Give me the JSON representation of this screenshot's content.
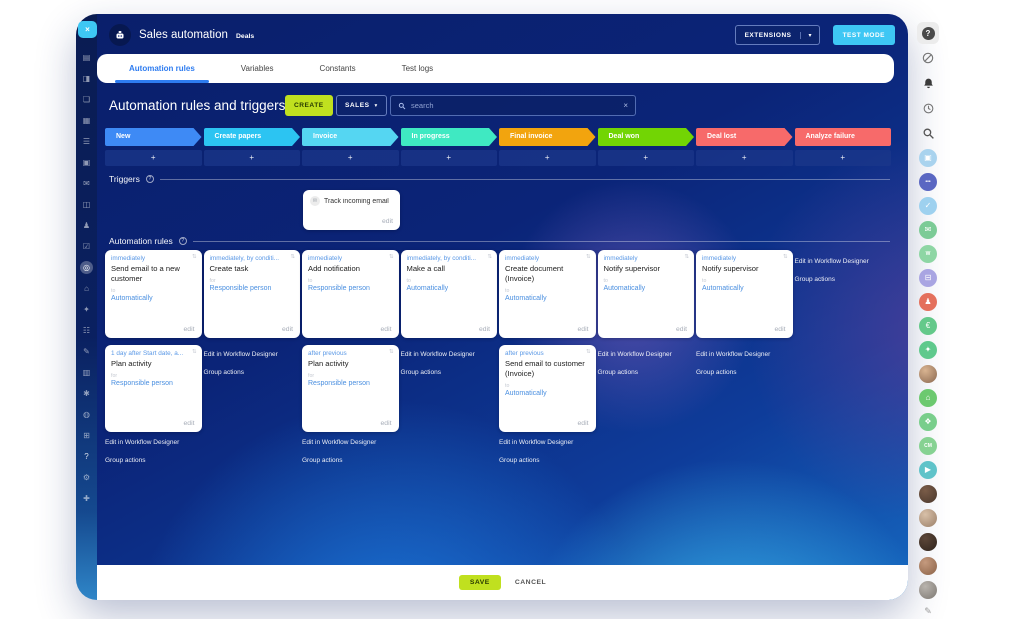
{
  "colors": {
    "accent_lime": "#c0e01f",
    "accent_cyan": "#3ec7f4"
  },
  "chrome": {
    "app_title": "Sales automation",
    "app_subtitle": "Deals",
    "extensions_label": "EXTENSIONS",
    "extensions_caret": "▾",
    "test_mode_label": "TEST MODE",
    "close_label": "×"
  },
  "tabs": [
    {
      "label": "Automation rules",
      "active": true
    },
    {
      "label": "Variables",
      "active": false
    },
    {
      "label": "Constants",
      "active": false
    },
    {
      "label": "Test logs",
      "active": false
    }
  ],
  "toolbar": {
    "heading": "Automation rules and triggers",
    "create_label": "CREATE",
    "pipeline_selector": "SALES",
    "pipeline_caret": "▾",
    "search_placeholder": "search",
    "search_clear": "×"
  },
  "pipeline": {
    "stages": [
      {
        "label": "New",
        "color": "#3e8af5"
      },
      {
        "label": "Create papers",
        "color": "#2cc4f2"
      },
      {
        "label": "Invoice",
        "color": "#55d6f2"
      },
      {
        "label": "In progress",
        "color": "#3fe9c2"
      },
      {
        "label": "Final invoice",
        "color": "#f2a40e"
      },
      {
        "label": "Deal won",
        "color": "#72d504"
      },
      {
        "label": "Deal lost",
        "color": "#f76a6a"
      },
      {
        "label": "Analyze failure",
        "color": "#f76a6a"
      }
    ],
    "add_stage_label": "+"
  },
  "sections": {
    "triggers": "Triggers",
    "rules": "Automation rules"
  },
  "trigger_card": {
    "title": "Track incoming email"
  },
  "labels": {
    "edit": "edit",
    "edit_workflow": "Edit in Workflow Designer",
    "group_actions": "Group actions"
  },
  "rules": {
    "row1": [
      {
        "when": "immediately",
        "title": "Send email to a new customer",
        "target_label": "to",
        "target": "Automatically"
      },
      {
        "when": "immediately, by conditi...",
        "title": "Create task",
        "target_label": "for",
        "target": "Responsible person"
      },
      {
        "when": "immediately",
        "title": "Add notification",
        "target_label": "to",
        "target": "Responsible person"
      },
      {
        "when": "immediately, by conditi...",
        "title": "Make a call",
        "target_label": "to",
        "target": "Automatically"
      },
      {
        "when": "immediately",
        "title": "Create document (Invoice)",
        "target_label": "to",
        "target": "Automatically"
      },
      {
        "when": "immediately",
        "title": "Notify supervisor",
        "target_label": "to",
        "target": "Automatically"
      },
      {
        "when": "immediately",
        "title": "Notify supervisor",
        "target_label": "to",
        "target": "Automatically"
      }
    ],
    "row2_col1": {
      "when": "1 day after Start date, a...",
      "title": "Plan activity",
      "target_label": "for",
      "target": "Responsible person"
    },
    "row2_col3": {
      "when": "after previous",
      "title": "Plan activity",
      "target_label": "for",
      "target": "Responsible person"
    },
    "row2_col5": {
      "when": "after previous",
      "title": "Send email to customer (Invoice)",
      "target_label": "to",
      "target": "Automatically"
    }
  },
  "footer": {
    "save": "SAVE",
    "cancel": "CANCEL"
  },
  "left_rail": {
    "items": [
      {
        "name": "live-feed-icon",
        "glyph": "▤"
      },
      {
        "name": "messenger-icon",
        "glyph": "◨"
      },
      {
        "name": "chats-icon",
        "glyph": "❏"
      },
      {
        "name": "calendar-icon",
        "glyph": "▦"
      },
      {
        "name": "docs-icon",
        "glyph": "☰"
      },
      {
        "name": "drive-icon",
        "glyph": "▣"
      },
      {
        "name": "mail-icon",
        "glyph": "✉"
      },
      {
        "name": "crm-icon",
        "glyph": "◫"
      },
      {
        "name": "clients-icon",
        "glyph": "♟"
      },
      {
        "name": "tasks-icon",
        "glyph": "☑"
      },
      {
        "name": "sales-automation-icon",
        "glyph": "◎",
        "active": true
      },
      {
        "name": "company-icon",
        "glyph": "⌂"
      },
      {
        "name": "marketing-icon",
        "glyph": "✦"
      },
      {
        "name": "shop-icon",
        "glyph": "☷"
      },
      {
        "name": "sign-icon",
        "glyph": "✎"
      },
      {
        "name": "contacts-icon",
        "glyph": "▥"
      },
      {
        "name": "copilot-icon",
        "glyph": "✱"
      },
      {
        "name": "market-icon",
        "glyph": "◍"
      },
      {
        "name": "sites-icon",
        "glyph": "⊞"
      },
      {
        "name": "help-icon",
        "glyph": "?",
        "bright": true
      },
      {
        "name": "settings-gear-icon",
        "glyph": "⚙"
      },
      {
        "name": "add-plus-icon",
        "glyph": "✚"
      }
    ]
  },
  "right_rail": {
    "top_icons": [
      {
        "name": "help-icon",
        "kind": "help"
      },
      {
        "name": "browser-icon",
        "kind": "compass"
      },
      {
        "name": "notifications-bell-icon",
        "kind": "bell"
      },
      {
        "name": "history-clock-icon",
        "kind": "clock"
      },
      {
        "name": "search-icon",
        "kind": "search"
      }
    ],
    "items": [
      {
        "name": "planner-app-avatar",
        "kind": "icon",
        "bg": "#a9d3ee",
        "glyph": "▣"
      },
      {
        "name": "chat-app-avatar",
        "kind": "icon",
        "bg": "#5a67c2",
        "glyph": "•••",
        "text": true
      },
      {
        "name": "check-app-avatar",
        "kind": "icon",
        "bg": "#9ed1ef",
        "glyph": "✓"
      },
      {
        "name": "mail-app-avatar",
        "kind": "icon",
        "bg": "#7ccb96",
        "glyph": "✉"
      },
      {
        "name": "workflow-app-avatar",
        "kind": "icon",
        "bg": "#8ed6a4",
        "glyph": "W",
        "text": true
      },
      {
        "name": "board-app-avatar",
        "kind": "icon",
        "bg": "#a9a5e2",
        "glyph": "⊟"
      },
      {
        "name": "audience-app-avatar",
        "kind": "icon",
        "bg": "#e4705c",
        "glyph": "♟"
      },
      {
        "name": "payments-app-avatar",
        "kind": "icon",
        "bg": "#64c98a",
        "glyph": "€"
      },
      {
        "name": "security-lock-avatar",
        "kind": "icon",
        "bg": "#5fc98c",
        "glyph": "✦"
      },
      {
        "name": "user-photo-avatar",
        "kind": "photo",
        "c1": "#d9b491",
        "c2": "#8a6850"
      },
      {
        "name": "store-app-avatar",
        "kind": "icon",
        "bg": "#6cc96f",
        "glyph": "⌂"
      },
      {
        "name": "shield-app-avatar",
        "kind": "icon",
        "bg": "#79ce8b",
        "glyph": "❖"
      },
      {
        "name": "crm-chip-avatar",
        "kind": "icon",
        "bg": "#86d292",
        "glyph": "CM",
        "text": true
      },
      {
        "name": "video-app-avatar",
        "kind": "icon",
        "bg": "#5fc3c9",
        "glyph": "▶"
      },
      {
        "name": "user-photo-avatar",
        "kind": "photo",
        "c1": "#7a5c48",
        "c2": "#4a382c"
      },
      {
        "name": "user-photo-avatar",
        "kind": "photo",
        "c1": "#d8c0a8",
        "c2": "#9a7f68"
      },
      {
        "name": "user-photo-avatar",
        "kind": "photo",
        "c1": "#5c4638",
        "c2": "#2f241c"
      },
      {
        "name": "user-photo-avatar",
        "kind": "photo",
        "c1": "#c59a7e",
        "c2": "#8a6247"
      },
      {
        "name": "user-photo-avatar",
        "kind": "photo",
        "c1": "#b9b4ae",
        "c2": "#7d7872"
      }
    ],
    "pencil_glyph": "✎"
  }
}
